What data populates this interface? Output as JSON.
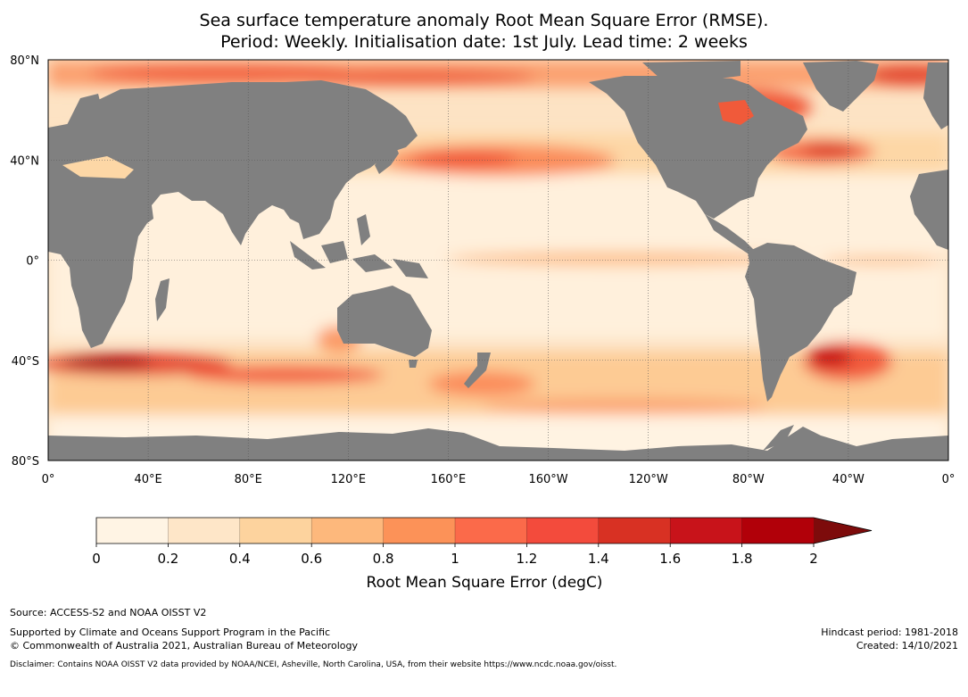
{
  "title": {
    "line1": "Sea surface temperature anomaly Root Mean Square Error (RMSE).",
    "line2": "Period: Weekly. Initialisation date: 1st July. Lead time: 2 weeks"
  },
  "map": {
    "lat_ticks": [
      "80°N",
      "40°N",
      "0°",
      "40°S",
      "80°S"
    ],
    "lon_ticks": [
      "0°",
      "40°E",
      "80°E",
      "120°E",
      "160°E",
      "160°W",
      "120°W",
      "80°W",
      "40°W",
      "0°"
    ],
    "colors": {
      "land": "#808080",
      "ocean_base": "#fde3c4",
      "gridline": "#555555"
    },
    "lon_range": [
      0,
      360
    ],
    "lat_range": [
      -80,
      80
    ],
    "central_longitude": 180
  },
  "colorbar": {
    "bounds": [
      0,
      0.2,
      0.4,
      0.6,
      0.8,
      1,
      1.2,
      1.4,
      1.6,
      1.8,
      2
    ],
    "tick_labels": [
      "0",
      "0.2",
      "0.4",
      "0.6",
      "0.8",
      "1",
      "1.2",
      "1.4",
      "1.6",
      "1.8",
      "2"
    ],
    "colors": [
      "#fff4e4",
      "#fee6c8",
      "#fdd39e",
      "#fdb87c",
      "#fc9258",
      "#fb6a4a",
      "#f34b3c",
      "#d83123",
      "#c8131a",
      "#b10009"
    ],
    "extend_color": "#7d0b0b",
    "label": "Root Mean Square Error (degC)"
  },
  "footer": {
    "source": "Source: ACCESS-S2 and NOAA OISST V2",
    "support": "Supported by Climate and Oceans Support Program in the Pacific",
    "copyright": "© Commonwealth of Australia 2021, Australian Bureau of Meteorology",
    "hindcast": "Hindcast period: 1981-2018",
    "created": "Created: 14/10/2021",
    "disclaimer": "Disclaimer: Contains NOAA OISST V2 data provided by NOAA/NCEI, Asheville, North Carolina, USA, from their website https://www.ncdc.noaa.gov/oisst."
  }
}
